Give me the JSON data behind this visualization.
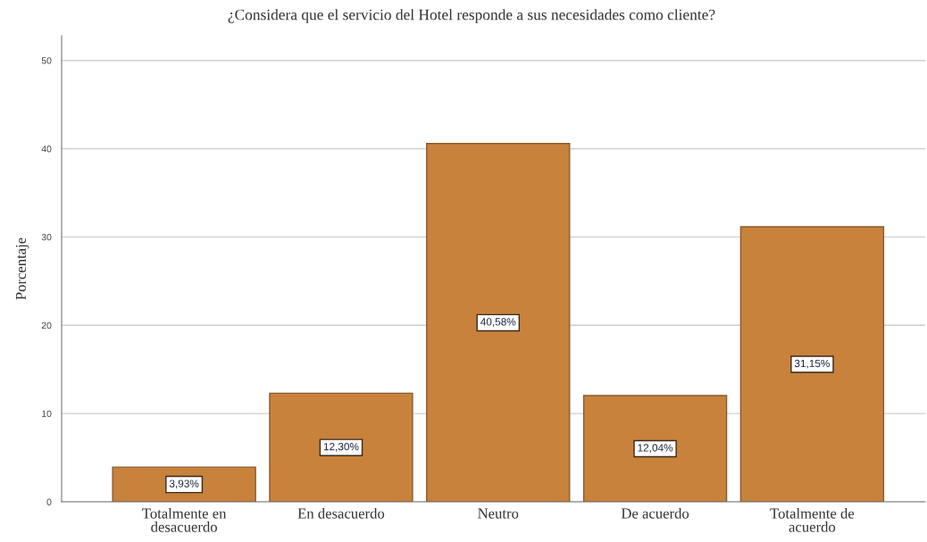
{
  "chart_data": {
    "type": "bar",
    "title": "¿Considera que el servicio del Hotel responde a sus necesidades como cliente?",
    "ylabel": "Porcentaje",
    "categories": [
      "Totalmente en desacuerdo",
      "En desacuerdo",
      "Neutro",
      "De acuerdo",
      "Totalmente de acuerdo"
    ],
    "values": [
      3.93,
      12.3,
      40.58,
      12.04,
      31.15
    ],
    "value_labels": [
      "3,93%",
      "12,30%",
      "40,58%",
      "12,04%",
      "31,15%"
    ],
    "color": "#c8823c",
    "ylim": [
      0,
      52.8
    ],
    "yticks": [
      0,
      10,
      20,
      30,
      40,
      50
    ],
    "grid": "y"
  }
}
